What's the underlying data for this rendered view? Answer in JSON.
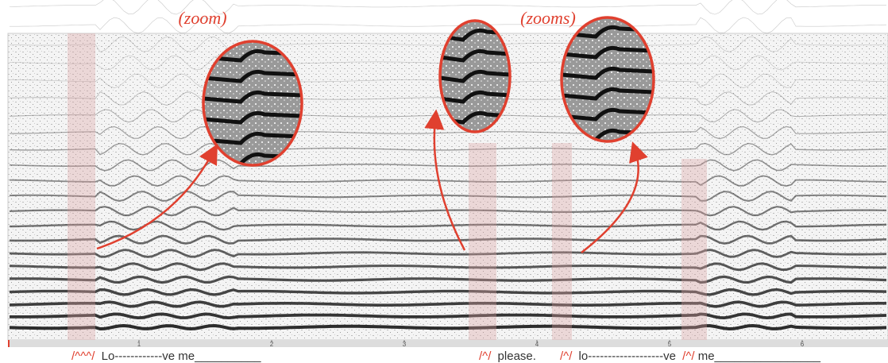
{
  "annotations": {
    "left": "(zoom)",
    "right": "(zooms)"
  },
  "time_axis": {
    "ticks": [
      1,
      2,
      3,
      4,
      5,
      6
    ]
  },
  "lyrics": {
    "mark1": "/^^^/",
    "phrase1": "Lo------------ve  me__________",
    "mark2": "/^/",
    "phrase2": "please.",
    "mark3": "/^/",
    "phrase3": "lo-------------------ve",
    "mark4": "/^/",
    "phrase4": "me________________"
  }
}
